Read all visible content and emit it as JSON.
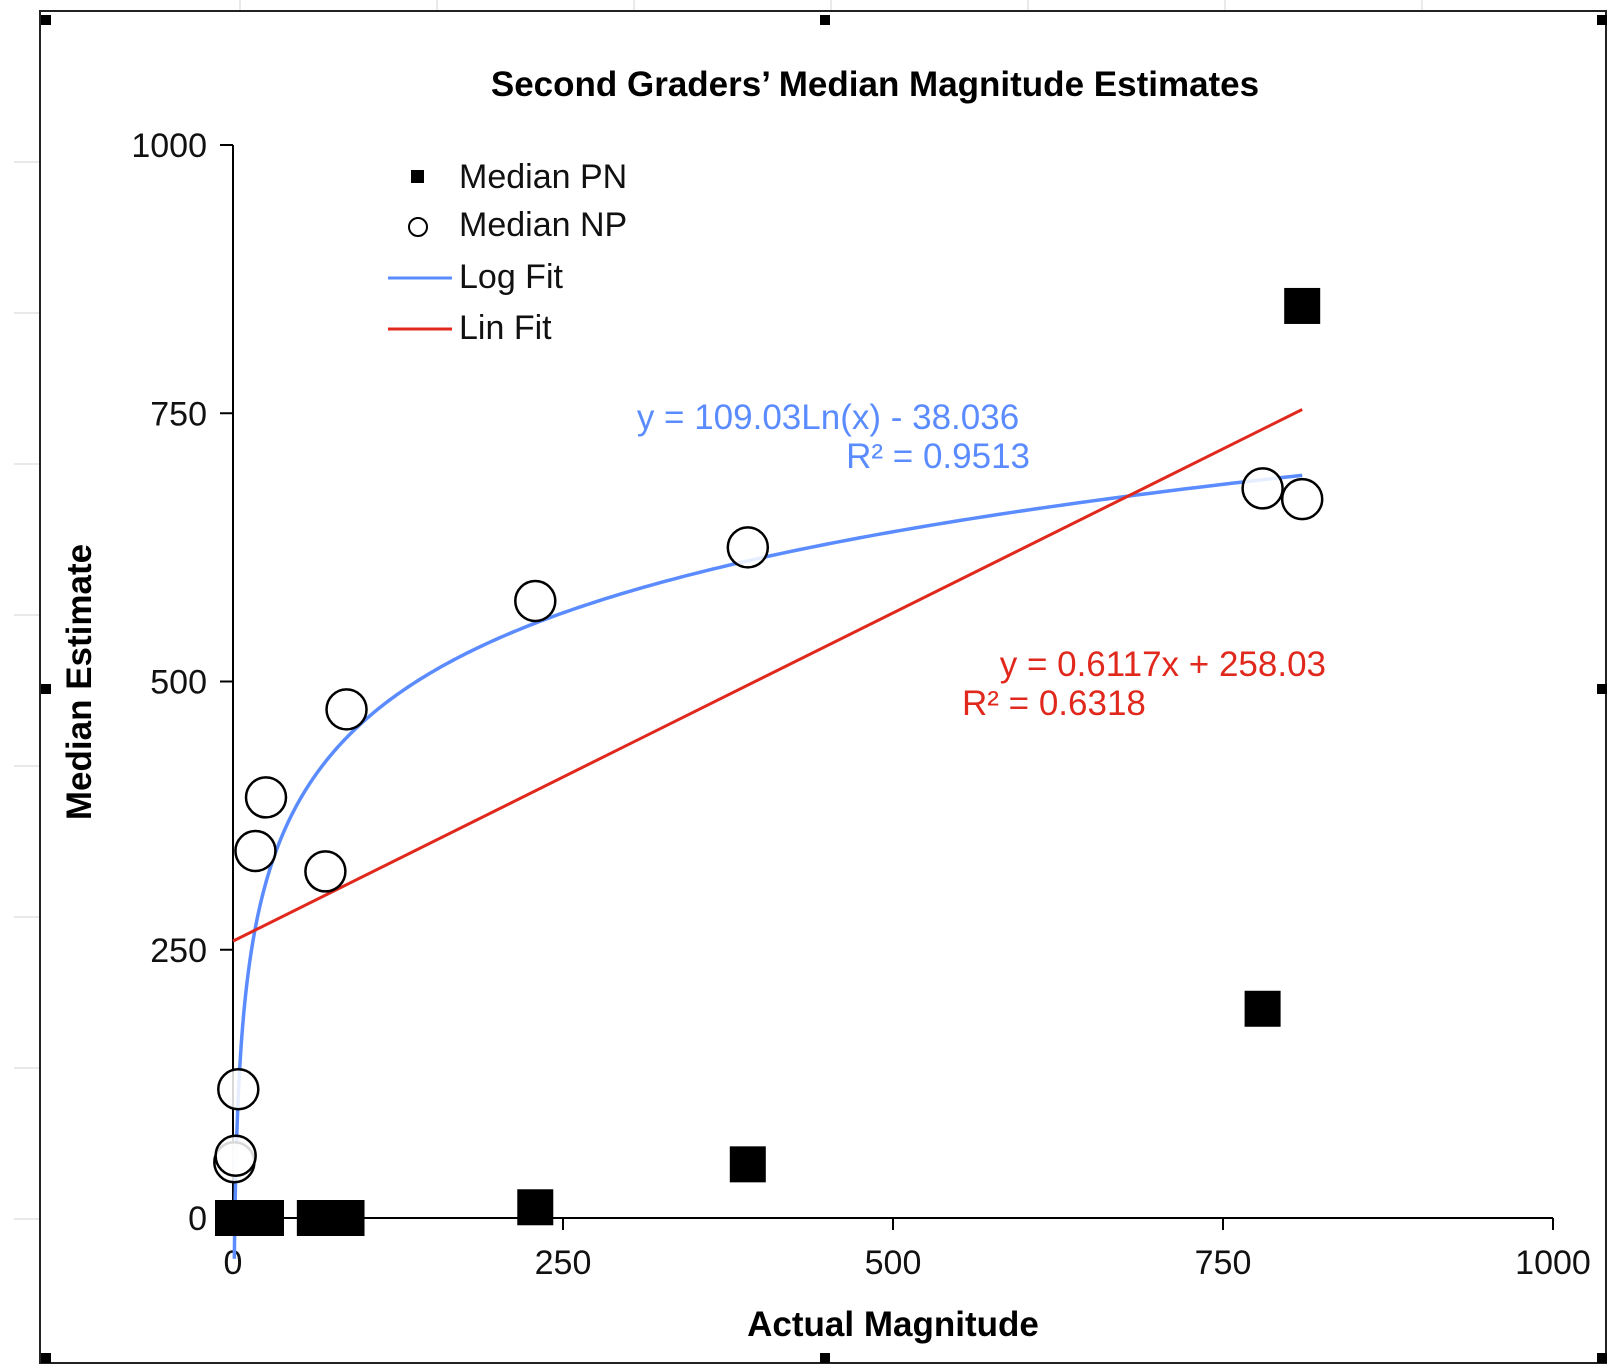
{
  "chart_data": {
    "type": "scatter",
    "title": "Second Graders’ Median Magnitude Estimates",
    "xlabel": "Actual Magnitude",
    "ylabel": "Median Estimate",
    "xlim": [
      0,
      1000
    ],
    "ylim": [
      0,
      1000
    ],
    "x_ticks": [
      "0",
      "250",
      "500",
      "750",
      "1000"
    ],
    "y_ticks": [
      "0",
      "250",
      "500",
      "750",
      "1000"
    ],
    "grid": false,
    "legend_placement": "top-left",
    "series": [
      {
        "name": "Median PN",
        "marker": "filled-square",
        "color": "#000000",
        "points": [
          {
            "x": 0,
            "y": 0
          },
          {
            "x": 3,
            "y": 0
          },
          {
            "x": 6,
            "y": 0
          },
          {
            "x": 12,
            "y": 0
          },
          {
            "x": 18,
            "y": 0
          },
          {
            "x": 25,
            "y": 0
          },
          {
            "x": 62,
            "y": 0
          },
          {
            "x": 71,
            "y": 0
          },
          {
            "x": 86,
            "y": 0
          },
          {
            "x": 229,
            "y": 10
          },
          {
            "x": 390,
            "y": 50
          },
          {
            "x": 780,
            "y": 195
          },
          {
            "x": 810,
            "y": 850
          }
        ]
      },
      {
        "name": "Median NP",
        "marker": "open-circle",
        "color": "#000000",
        "points": [
          {
            "x": 1,
            "y": 52
          },
          {
            "x": 2,
            "y": 58
          },
          {
            "x": 4,
            "y": 120
          },
          {
            "x": 17,
            "y": 342
          },
          {
            "x": 25,
            "y": 392
          },
          {
            "x": 70,
            "y": 323
          },
          {
            "x": 86,
            "y": 474
          },
          {
            "x": 229,
            "y": 575
          },
          {
            "x": 390,
            "y": 625
          },
          {
            "x": 780,
            "y": 680
          },
          {
            "x": 810,
            "y": 670
          }
        ]
      },
      {
        "name": "Log Fit",
        "type": "line",
        "color": "#5b8cff",
        "equation": "y = 109.03Ln(x) - 38.036",
        "r_squared": "R² = 0.9513",
        "a": 109.03,
        "b": -38.036,
        "x_range": [
          1,
          810
        ]
      },
      {
        "name": "Lin Fit",
        "type": "line",
        "color": "#e0281c",
        "equation": "y = 0.6117x + 258.03",
        "r_squared": "R² = 0.6318",
        "slope": 0.6117,
        "intercept": 258.03,
        "x_range": [
          0,
          810
        ]
      }
    ]
  }
}
